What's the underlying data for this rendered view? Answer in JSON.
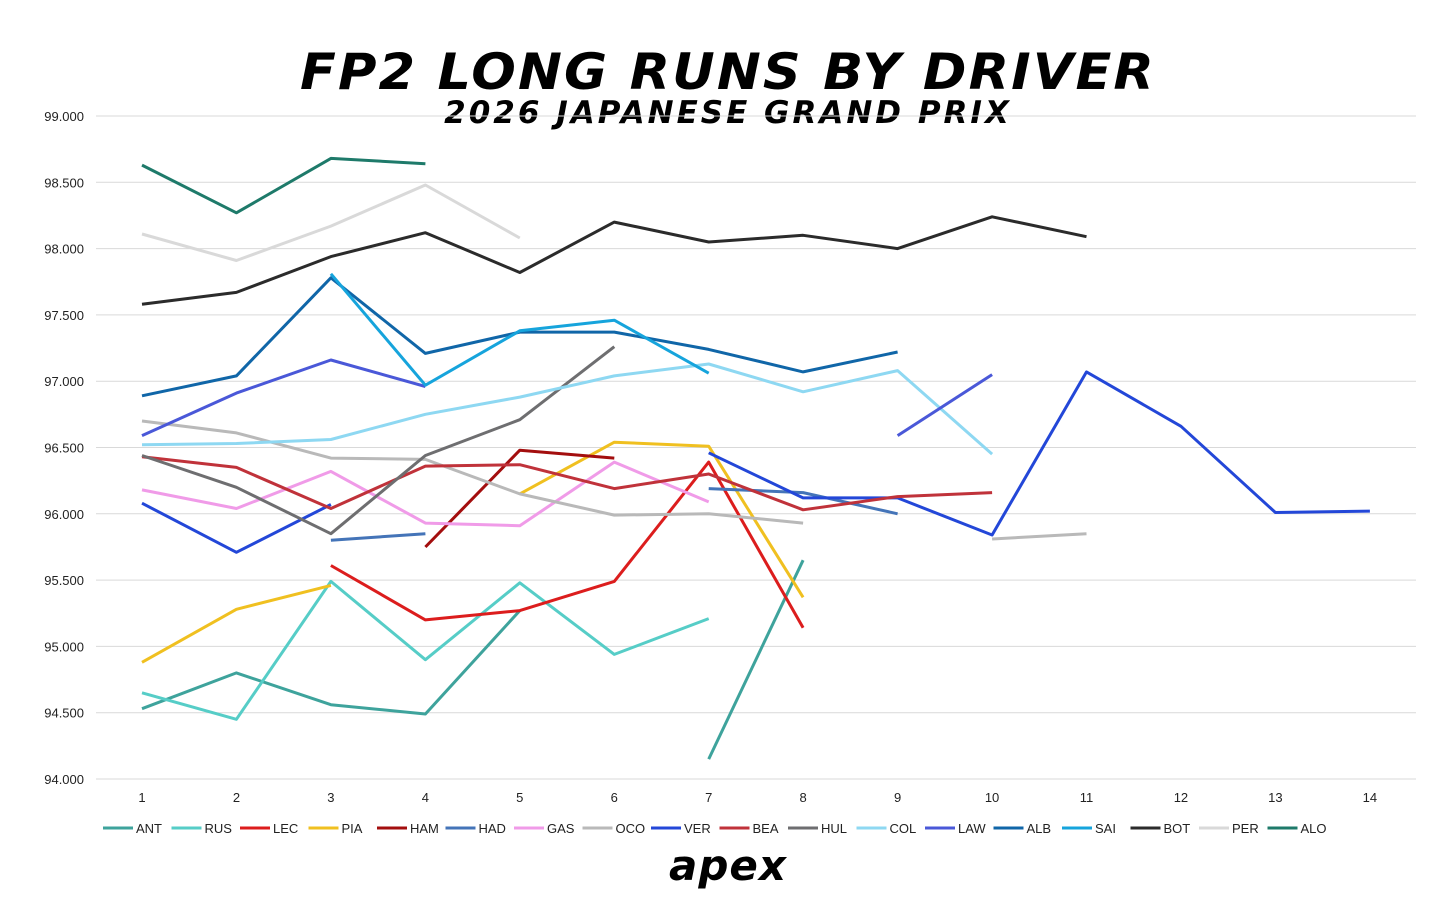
{
  "title": "FP2 LONG RUNS BY DRIVER",
  "subtitle": "2026 JAPANESE GRAND PRIX",
  "brand": "apex",
  "chart_data": {
    "type": "line",
    "title": "FP2 LONG RUNS BY DRIVER",
    "subtitle": "2026 JAPANESE GRAND PRIX",
    "xlabel": "",
    "ylabel": "",
    "x": [
      1,
      2,
      3,
      4,
      5,
      6,
      7,
      8,
      9,
      10,
      11,
      12,
      13,
      14
    ],
    "x_tick_labels": [
      "1",
      "2",
      "3",
      "4",
      "5",
      "6",
      "7",
      "8",
      "9",
      "10",
      "11",
      "12",
      "13",
      "14"
    ],
    "y_tick_labels": [
      "94.000",
      "94.500",
      "95.000",
      "95.500",
      "96.000",
      "96.500",
      "97.000",
      "97.500",
      "98.000",
      "98.500",
      "99.000"
    ],
    "ylim": [
      94.0,
      99.0
    ],
    "grid": "horizontal",
    "legend_position": "bottom",
    "series": [
      {
        "name": "ANT",
        "color": "#3ea39c",
        "segments": [
          [
            [
              1,
              94.53
            ],
            [
              2,
              94.8
            ],
            [
              3,
              94.56
            ],
            [
              4,
              94.49
            ],
            [
              5,
              95.27
            ]
          ],
          [
            [
              7,
              94.15
            ],
            [
              8,
              95.65
            ]
          ]
        ]
      },
      {
        "name": "RUS",
        "color": "#56cdc7",
        "segments": [
          [
            [
              1,
              94.65
            ],
            [
              2,
              94.45
            ],
            [
              3,
              95.49
            ],
            [
              4,
              94.9
            ],
            [
              5,
              95.48
            ],
            [
              6,
              94.94
            ],
            [
              7,
              95.21
            ]
          ]
        ]
      },
      {
        "name": "LEC",
        "color": "#dc1d1d",
        "segments": [
          [
            [
              3,
              95.61
            ],
            [
              4,
              95.2
            ],
            [
              5,
              95.27
            ],
            [
              6,
              95.49
            ],
            [
              7,
              96.39
            ],
            [
              8,
              95.14
            ]
          ]
        ]
      },
      {
        "name": "PIA",
        "color": "#f0c020",
        "segments": [
          [
            [
              1,
              94.88
            ],
            [
              2,
              95.28
            ],
            [
              3,
              95.46
            ]
          ],
          [
            [
              5,
              96.15
            ],
            [
              6,
              96.54
            ],
            [
              7,
              96.51
            ],
            [
              8,
              95.37
            ]
          ]
        ]
      },
      {
        "name": "HAM",
        "color": "#a30e0e",
        "segments": [
          [
            [
              4,
              95.75
            ],
            [
              5,
              96.48
            ],
            [
              6,
              96.42
            ]
          ]
        ]
      },
      {
        "name": "HAD",
        "color": "#4474b8",
        "segments": [
          [
            [
              3,
              95.8
            ],
            [
              4,
              95.85
            ]
          ],
          [
            [
              7,
              96.19
            ],
            [
              8,
              96.16
            ],
            [
              9,
              96.0
            ]
          ]
        ]
      },
      {
        "name": "GAS",
        "color": "#f09be8",
        "segments": [
          [
            [
              1,
              96.18
            ],
            [
              2,
              96.04
            ],
            [
              3,
              96.32
            ],
            [
              4,
              95.93
            ],
            [
              5,
              95.91
            ],
            [
              6,
              96.39
            ],
            [
              7,
              96.09
            ]
          ]
        ]
      },
      {
        "name": "OCO",
        "color": "#b9b9b9",
        "segments": [
          [
            [
              1,
              96.7
            ],
            [
              2,
              96.61
            ],
            [
              3,
              96.42
            ],
            [
              4,
              96.41
            ],
            [
              5,
              96.15
            ],
            [
              6,
              95.99
            ],
            [
              7,
              96.0
            ],
            [
              8,
              95.93
            ]
          ],
          [
            [
              10,
              95.81
            ],
            [
              11,
              95.85
            ]
          ]
        ]
      },
      {
        "name": "VER",
        "color": "#2347d8",
        "segments": [
          [
            [
              1,
              96.08
            ],
            [
              2,
              95.71
            ],
            [
              3,
              96.07
            ]
          ],
          [
            [
              7,
              96.46
            ],
            [
              8,
              96.12
            ],
            [
              9,
              96.12
            ],
            [
              10,
              95.84
            ],
            [
              11,
              97.07
            ],
            [
              12,
              96.66
            ],
            [
              13,
              96.01
            ],
            [
              14,
              96.02
            ]
          ]
        ]
      },
      {
        "name": "BEA",
        "color": "#c0323a",
        "segments": [
          [
            [
              1,
              96.43
            ],
            [
              2,
              96.35
            ],
            [
              3,
              96.04
            ],
            [
              4,
              96.36
            ],
            [
              5,
              96.37
            ],
            [
              6,
              96.19
            ],
            [
              7,
              96.3
            ],
            [
              8,
              96.03
            ],
            [
              9,
              96.13
            ],
            [
              10,
              96.16
            ]
          ]
        ]
      },
      {
        "name": "HUL",
        "color": "#6e6e70",
        "segments": [
          [
            [
              1,
              96.44
            ],
            [
              2,
              96.2
            ],
            [
              3,
              95.85
            ],
            [
              4,
              96.44
            ],
            [
              5,
              96.71
            ],
            [
              6,
              97.26
            ]
          ]
        ]
      },
      {
        "name": "COL",
        "color": "#8ed8f2",
        "segments": [
          [
            [
              1,
              96.52
            ],
            [
              2,
              96.53
            ],
            [
              3,
              96.56
            ],
            [
              4,
              96.75
            ],
            [
              5,
              96.88
            ],
            [
              6,
              97.04
            ],
            [
              7,
              97.13
            ],
            [
              8,
              96.92
            ],
            [
              9,
              97.08
            ],
            [
              10,
              96.45
            ]
          ]
        ]
      },
      {
        "name": "LAW",
        "color": "#4a58d8",
        "segments": [
          [
            [
              1,
              96.59
            ],
            [
              2,
              96.91
            ],
            [
              3,
              97.16
            ],
            [
              4,
              96.96
            ]
          ],
          [
            [
              9,
              96.59
            ],
            [
              10,
              97.05
            ]
          ]
        ]
      },
      {
        "name": "ALB",
        "color": "#1066a8",
        "segments": [
          [
            [
              1,
              96.89
            ],
            [
              2,
              97.04
            ],
            [
              3,
              97.78
            ],
            [
              4,
              97.21
            ],
            [
              5,
              97.37
            ],
            [
              6,
              97.37
            ],
            [
              7,
              97.24
            ],
            [
              8,
              97.07
            ],
            [
              9,
              97.22
            ]
          ]
        ]
      },
      {
        "name": "SAI",
        "color": "#16a4dc",
        "segments": [
          [
            [
              3,
              97.81
            ],
            [
              4,
              96.97
            ],
            [
              5,
              97.38
            ],
            [
              6,
              97.46
            ],
            [
              7,
              97.06
            ]
          ]
        ]
      },
      {
        "name": "BOT",
        "color": "#2b2b2b",
        "segments": [
          [
            [
              1,
              97.58
            ],
            [
              2,
              97.67
            ],
            [
              3,
              97.94
            ],
            [
              4,
              98.12
            ],
            [
              5,
              97.82
            ],
            [
              6,
              98.2
            ],
            [
              7,
              98.05
            ],
            [
              8,
              98.1
            ],
            [
              9,
              98.0
            ],
            [
              10,
              98.24
            ],
            [
              11,
              98.09
            ]
          ]
        ]
      },
      {
        "name": "PER",
        "color": "#d9d9d9",
        "segments": [
          [
            [
              1,
              98.11
            ],
            [
              2,
              97.91
            ],
            [
              3,
              98.17
            ],
            [
              4,
              98.48
            ],
            [
              5,
              98.08
            ]
          ]
        ]
      },
      {
        "name": "ALO",
        "color": "#1e7a6a",
        "segments": [
          [
            [
              1,
              98.63
            ],
            [
              2,
              98.27
            ],
            [
              3,
              98.68
            ],
            [
              4,
              98.64
            ]
          ]
        ]
      }
    ]
  }
}
